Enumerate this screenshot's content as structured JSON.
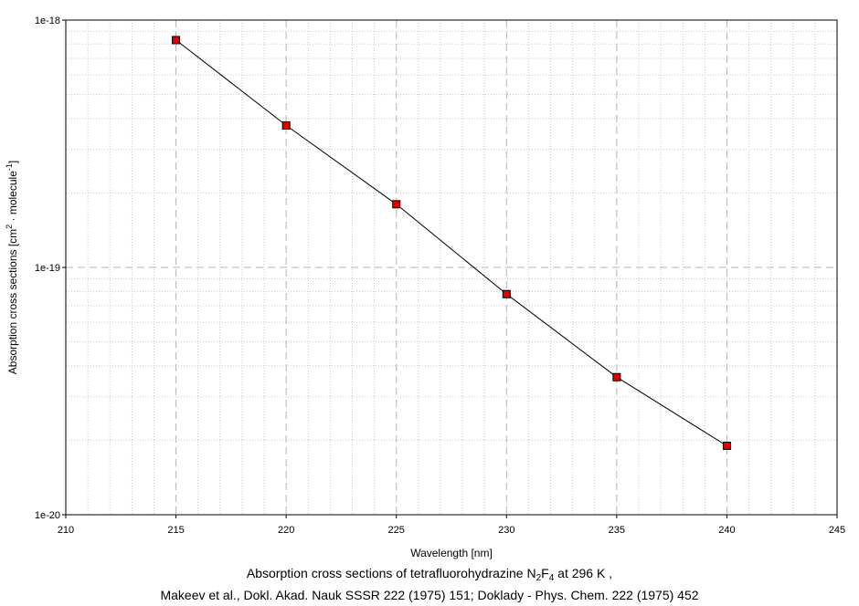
{
  "chart_data": {
    "type": "line",
    "xlabel": "Wavelength [nm]",
    "ylabel_parts": {
      "prefix": "Absorption cross sections [cm",
      "exp1": "2",
      "middle": " · molecule",
      "exp2": "-1",
      "suffix": "]"
    },
    "xlim": [
      210,
      245
    ],
    "ylim": [
      1e-20,
      1e-18
    ],
    "yscale": "log",
    "x_ticks": [
      210,
      215,
      220,
      225,
      230,
      235,
      240,
      245
    ],
    "y_ticks": [
      "1e-20",
      "1e-19",
      "1e-18"
    ],
    "grid": true,
    "series": [
      {
        "x": [
          215,
          220,
          225,
          230,
          235,
          240
        ],
        "y": [
          8.3e-19,
          3.75e-19,
          1.8e-19,
          7.8e-20,
          3.6e-20,
          1.9e-20
        ],
        "marker": "square",
        "marker_color": "#e00000",
        "line_color": "#000000"
      }
    ]
  },
  "caption": {
    "line1_prefix": "Absorption cross sections of tetrafluorohydrazine N",
    "line1_sub1": "2",
    "line1_mid": "F",
    "line1_sub2": "4",
    "line1_suffix": " at 296 K ,",
    "line2": "Makeev et al., Dokl. Akad. Nauk SSSR 222 (1975) 151; Doklady - Phys. Chem. 222 (1975) 452"
  }
}
